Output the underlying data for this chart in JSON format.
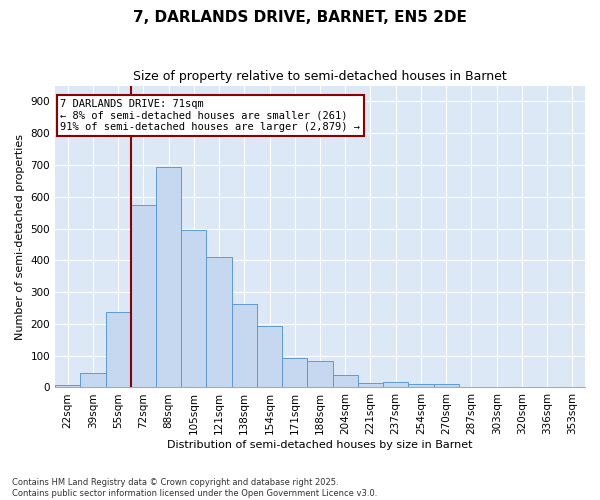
{
  "title": "7, DARLANDS DRIVE, BARNET, EN5 2DE",
  "subtitle": "Size of property relative to semi-detached houses in Barnet",
  "xlabel": "Distribution of semi-detached houses by size in Barnet",
  "ylabel": "Number of semi-detached properties",
  "categories": [
    "22sqm",
    "39sqm",
    "55sqm",
    "72sqm",
    "88sqm",
    "105sqm",
    "121sqm",
    "138sqm",
    "154sqm",
    "171sqm",
    "188sqm",
    "204sqm",
    "221sqm",
    "237sqm",
    "254sqm",
    "270sqm",
    "287sqm",
    "303sqm",
    "320sqm",
    "336sqm",
    "353sqm"
  ],
  "values": [
    8,
    45,
    238,
    575,
    693,
    495,
    410,
    263,
    193,
    93,
    83,
    40,
    15,
    18,
    10,
    10,
    3,
    0,
    3,
    0,
    0
  ],
  "bar_color": "#c5d8f0",
  "bar_edge_color": "#5b9bd5",
  "vline_color": "#8b0000",
  "annotation_text": "7 DARLANDS DRIVE: 71sqm\n← 8% of semi-detached houses are smaller (261)\n91% of semi-detached houses are larger (2,879) →",
  "annotation_box_color": "#8b0000",
  "ylim": [
    0,
    950
  ],
  "yticks": [
    0,
    100,
    200,
    300,
    400,
    500,
    600,
    700,
    800,
    900
  ],
  "background_color": "#dce8f5",
  "footer": "Contains HM Land Registry data © Crown copyright and database right 2025.\nContains public sector information licensed under the Open Government Licence v3.0.",
  "title_fontsize": 11,
  "subtitle_fontsize": 9,
  "axis_label_fontsize": 8,
  "tick_fontsize": 7.5,
  "footer_fontsize": 6
}
